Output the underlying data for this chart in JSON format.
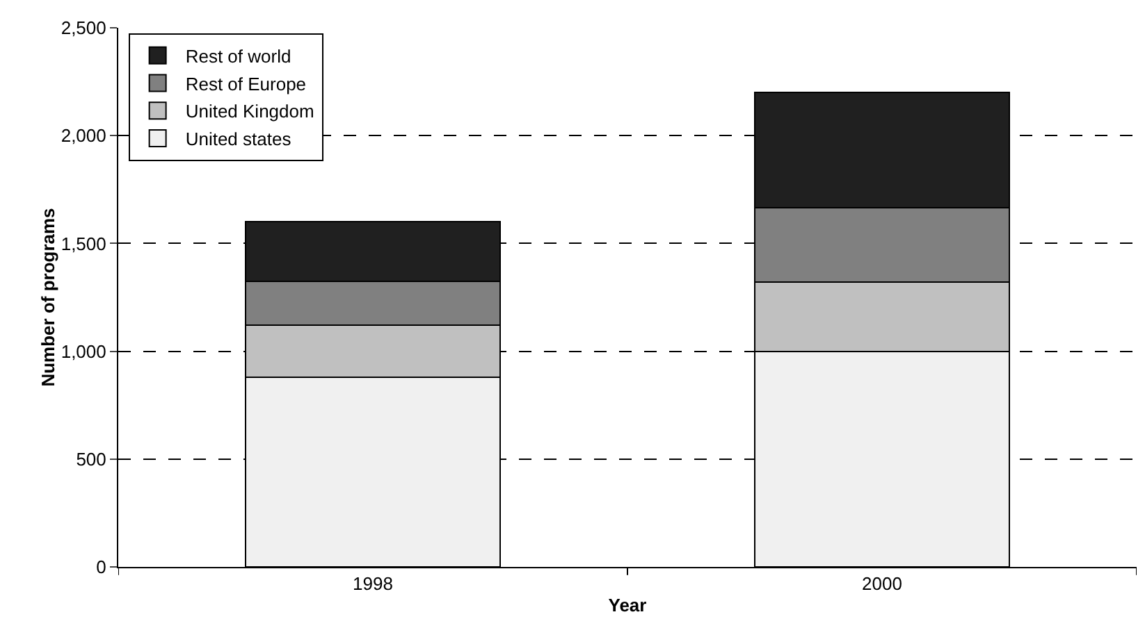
{
  "chart_data": {
    "type": "bar",
    "stacked": true,
    "xlabel": "Year",
    "ylabel": "Number of programs",
    "categories": [
      "1998",
      "2000"
    ],
    "series": [
      {
        "name": "United states",
        "color": "#f0f0f0",
        "values": [
          880,
          1000
        ]
      },
      {
        "name": "United Kingdom",
        "color": "#c0c0c0",
        "values": [
          240,
          320
        ]
      },
      {
        "name": "Rest of Europe",
        "color": "#808080",
        "values": [
          205,
          345
        ]
      },
      {
        "name": "Rest of world",
        "color": "#202020",
        "values": [
          275,
          535
        ]
      }
    ],
    "ylim": [
      0,
      2500
    ],
    "yticks": [
      {
        "value": 0,
        "label": "0"
      },
      {
        "value": 500,
        "label": "500"
      },
      {
        "value": 1000,
        "label": "1,000"
      },
      {
        "value": 1500,
        "label": "1,500"
      },
      {
        "value": 2000,
        "label": "2,000"
      },
      {
        "value": 2500,
        "label": "2,500"
      }
    ],
    "grid": "y",
    "legend": "top left"
  }
}
